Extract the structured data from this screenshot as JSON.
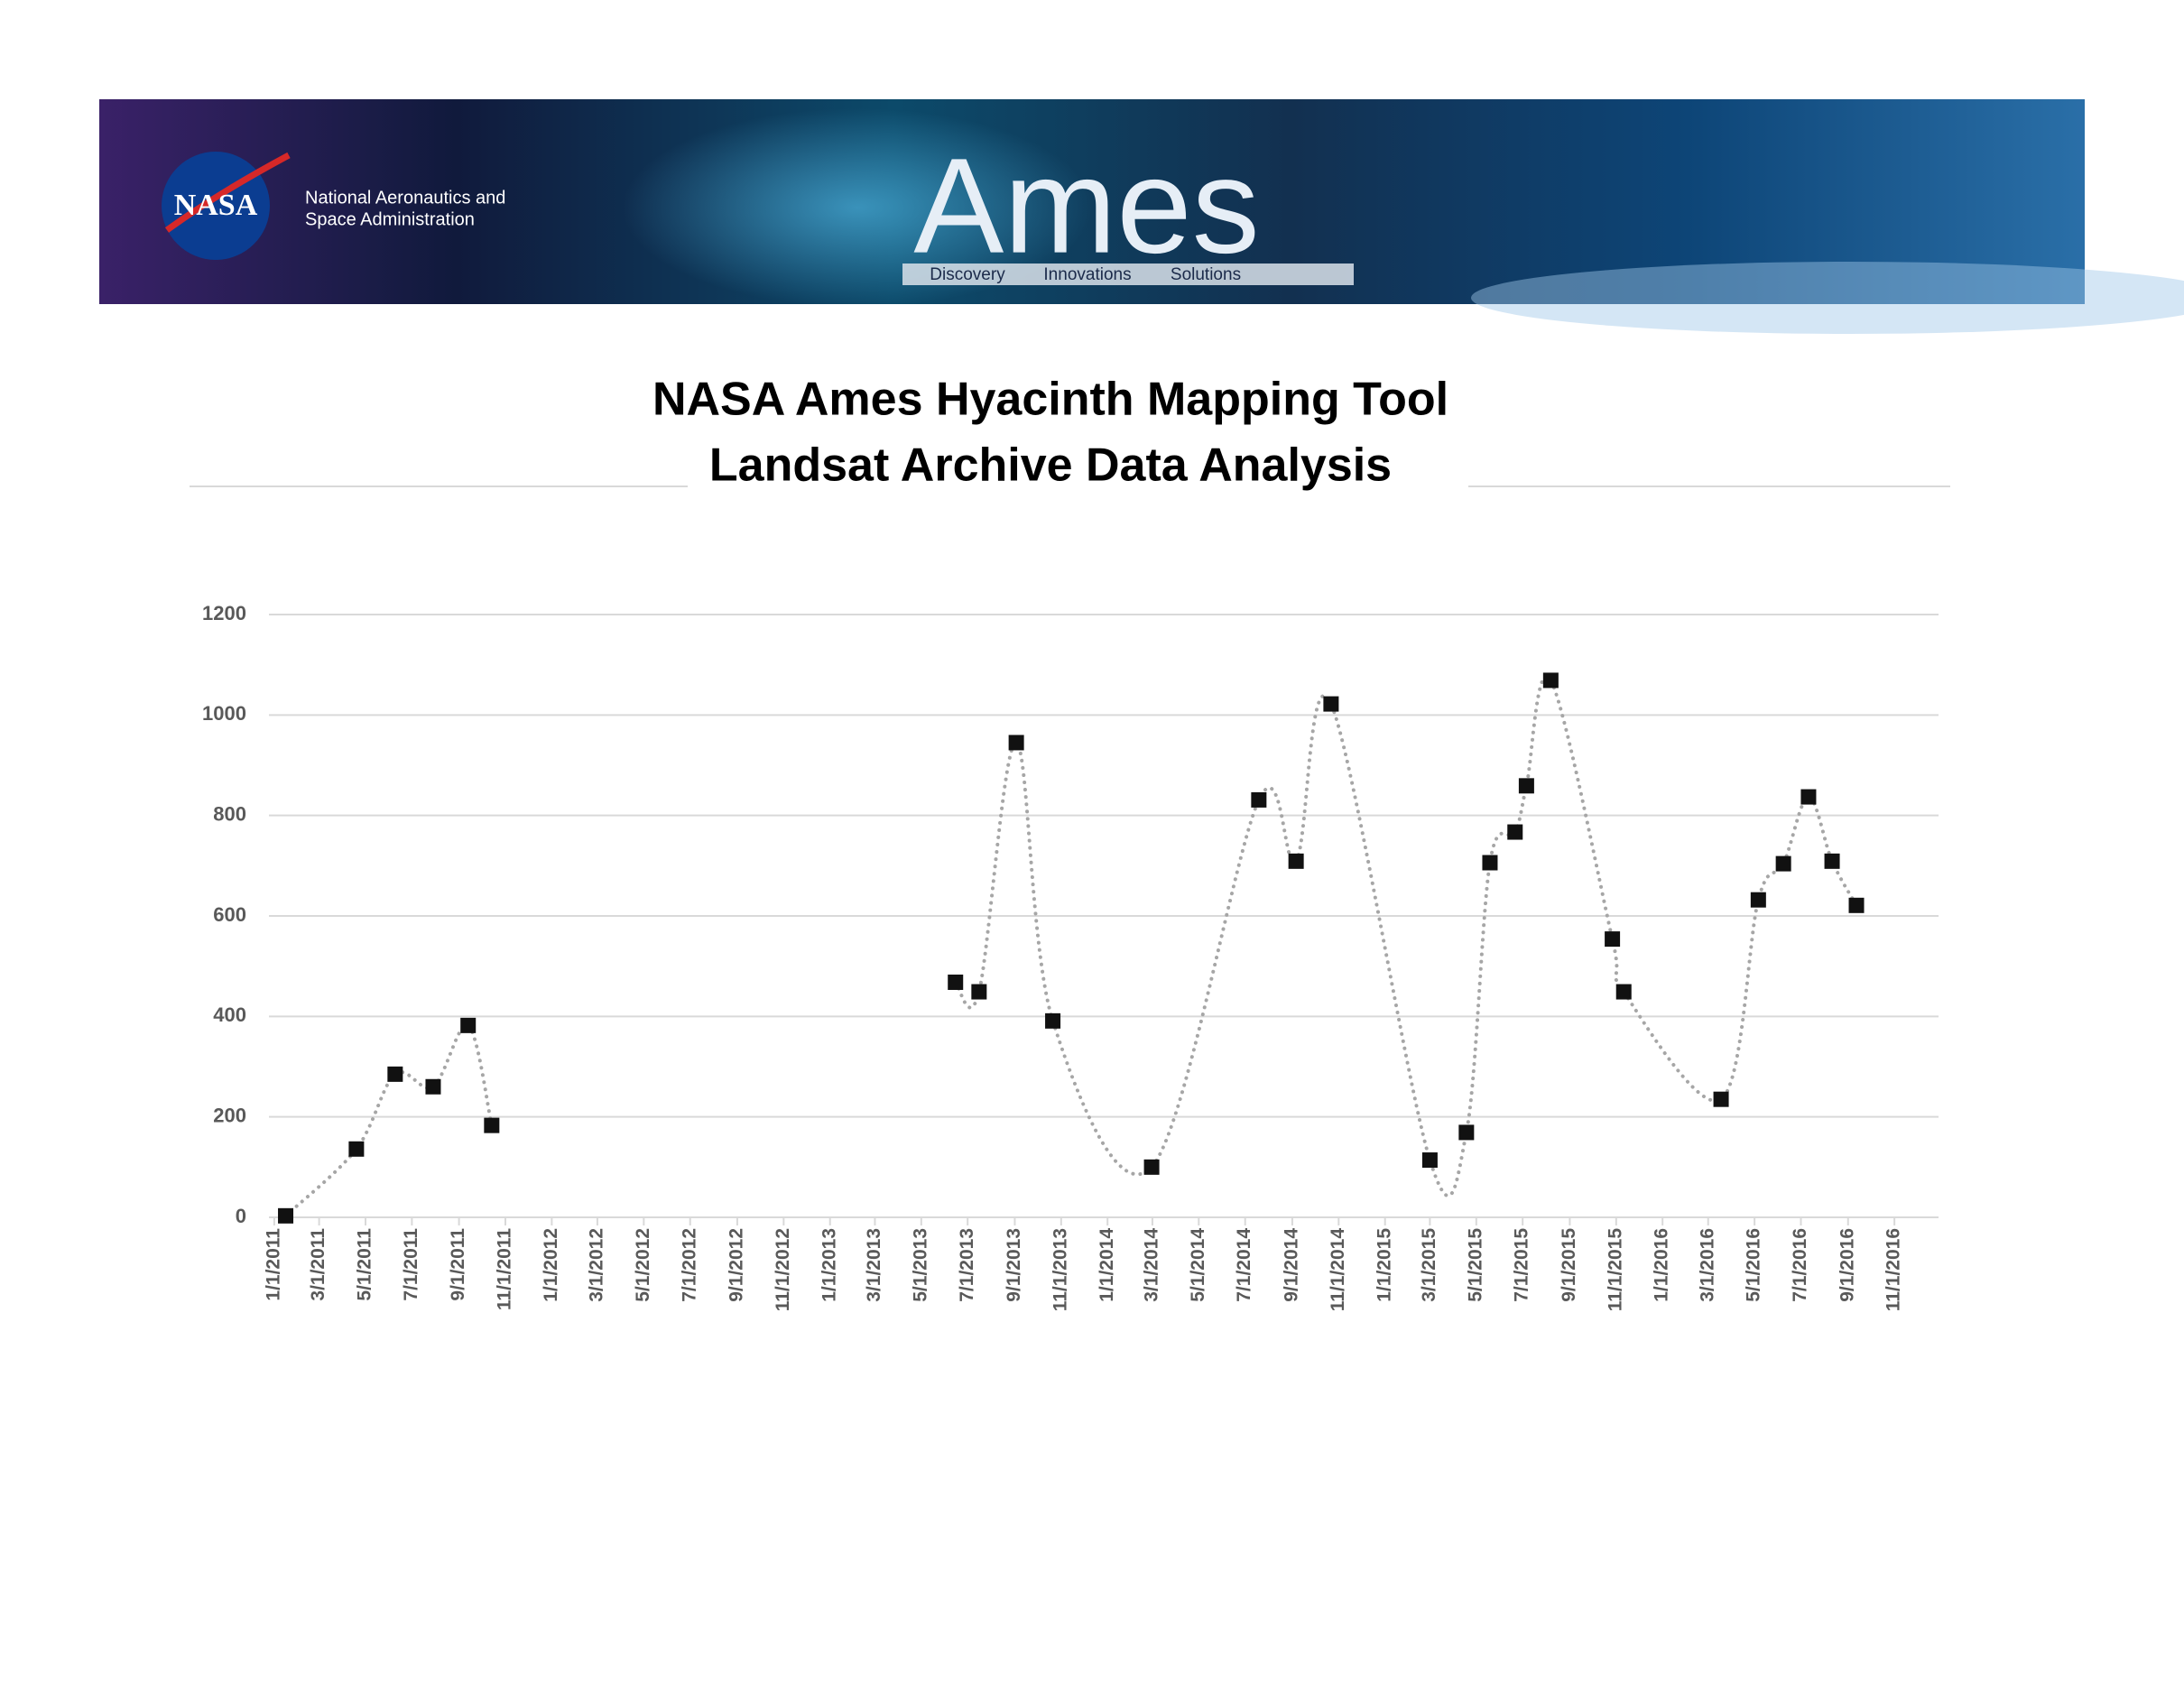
{
  "header": {
    "logo_text": "NASA",
    "agency_line1": "National Aeronautics and",
    "agency_line2": "Space Administration",
    "center_name": "Ames",
    "tagline": [
      "Discovery",
      "Innovations",
      "Solutions"
    ]
  },
  "chart_data": {
    "type": "line",
    "title": "NASA Ames Hyacinth Mapping Tool",
    "subtitle": "Landsat Archive Data Analysis",
    "x": [
      "2011-01-16",
      "2011-04-19",
      "2011-06-09",
      "2011-07-29",
      "2011-09-13",
      "2011-10-14",
      null,
      "2013-06-15",
      "2013-07-16",
      "2013-09-03",
      "2013-10-21",
      "2014-02-28",
      "2014-07-19",
      "2014-09-06",
      "2014-10-22",
      "2015-03-01",
      "2015-04-18",
      "2015-05-19",
      "2015-06-21",
      "2015-07-06",
      "2015-08-07",
      "2015-10-27",
      "2015-11-11",
      "2016-03-18",
      "2016-05-06",
      "2016-06-08",
      "2016-07-11",
      "2016-08-11",
      "2016-09-12"
    ],
    "values": [
      3,
      136,
      285,
      260,
      382,
      183,
      null,
      468,
      449,
      945,
      391,
      100,
      831,
      709,
      1022,
      114,
      169,
      706,
      767,
      859,
      1069,
      554,
      449,
      235,
      632,
      704,
      837,
      709,
      621
    ],
    "color": "#111111",
    "line_color": "#a6a6a6",
    "line_style": "dotted",
    "smooth": true,
    "markers": "square",
    "xlim": [
      "2010-12-25",
      "2016-12-29"
    ],
    "xticks": [
      {
        "value": "2011-01-01",
        "label": "1/1/2011"
      },
      {
        "value": "2011-03-01",
        "label": "3/1/2011"
      },
      {
        "value": "2011-05-01",
        "label": "5/1/2011"
      },
      {
        "value": "2011-07-01",
        "label": "7/1/2011"
      },
      {
        "value": "2011-09-01",
        "label": "9/1/2011"
      },
      {
        "value": "2011-11-01",
        "label": "11/1/2011"
      },
      {
        "value": "2012-01-01",
        "label": "1/1/2012"
      },
      {
        "value": "2012-03-01",
        "label": "3/1/2012"
      },
      {
        "value": "2012-05-01",
        "label": "5/1/2012"
      },
      {
        "value": "2012-07-01",
        "label": "7/1/2012"
      },
      {
        "value": "2012-09-01",
        "label": "9/1/2012"
      },
      {
        "value": "2012-11-01",
        "label": "11/1/2012"
      },
      {
        "value": "2013-01-01",
        "label": "1/1/2013"
      },
      {
        "value": "2013-03-01",
        "label": "3/1/2013"
      },
      {
        "value": "2013-05-01",
        "label": "5/1/2013"
      },
      {
        "value": "2013-07-01",
        "label": "7/1/2013"
      },
      {
        "value": "2013-09-01",
        "label": "9/1/2013"
      },
      {
        "value": "2013-11-01",
        "label": "11/1/2013"
      },
      {
        "value": "2014-01-01",
        "label": "1/1/2014"
      },
      {
        "value": "2014-03-01",
        "label": "3/1/2014"
      },
      {
        "value": "2014-05-01",
        "label": "5/1/2014"
      },
      {
        "value": "2014-07-01",
        "label": "7/1/2014"
      },
      {
        "value": "2014-09-01",
        "label": "9/1/2014"
      },
      {
        "value": "2014-11-01",
        "label": "11/1/2014"
      },
      {
        "value": "2015-01-01",
        "label": "1/1/2015"
      },
      {
        "value": "2015-03-01",
        "label": "3/1/2015"
      },
      {
        "value": "2015-05-01",
        "label": "5/1/2015"
      },
      {
        "value": "2015-07-01",
        "label": "7/1/2015"
      },
      {
        "value": "2015-09-01",
        "label": "9/1/2015"
      },
      {
        "value": "2015-11-01",
        "label": "11/1/2015"
      },
      {
        "value": "2016-01-01",
        "label": "1/1/2016"
      },
      {
        "value": "2016-03-01",
        "label": "3/1/2016"
      },
      {
        "value": "2016-05-01",
        "label": "5/1/2016"
      },
      {
        "value": "2016-07-01",
        "label": "7/1/2016"
      },
      {
        "value": "2016-09-01",
        "label": "9/1/2016"
      },
      {
        "value": "2016-11-01",
        "label": "11/1/2016"
      }
    ],
    "ylim": [
      0,
      1200
    ],
    "yticks": [
      0,
      200,
      400,
      600,
      800,
      1000,
      1200
    ],
    "grid": true
  }
}
